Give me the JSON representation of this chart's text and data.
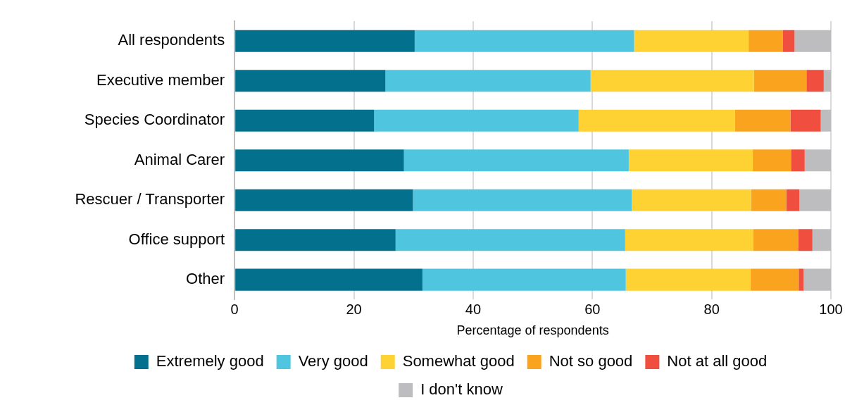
{
  "chart_data": {
    "type": "bar",
    "orientation": "horizontal",
    "stacked": true,
    "xlabel": "Percentage of respondents",
    "categories": [
      "All respondents",
      "Executive member",
      "Species Coordinator",
      "Animal Carer",
      "Rescuer / Transporter",
      "Office support",
      "Other"
    ],
    "series": [
      {
        "name": "Extremely good",
        "color": "#03718e",
        "values": [
          30.2,
          25.3,
          23.4,
          28.4,
          29.9,
          27.0,
          31.5
        ]
      },
      {
        "name": "Very good",
        "color": "#4fc5df",
        "values": [
          36.8,
          34.4,
          34.3,
          37.7,
          36.7,
          38.5,
          34.1
        ]
      },
      {
        "name": "Somewhat good",
        "color": "#fdd232",
        "values": [
          19.2,
          27.4,
          26.2,
          20.8,
          20.0,
          21.5,
          20.9
        ]
      },
      {
        "name": "Not so good",
        "color": "#f9a31e",
        "values": [
          5.7,
          8.8,
          9.3,
          6.4,
          5.9,
          7.5,
          8.1
        ]
      },
      {
        "name": "Not at all good",
        "color": "#f04e3e",
        "values": [
          2.0,
          2.9,
          5.1,
          2.3,
          2.2,
          2.4,
          0.8
        ]
      },
      {
        "name": "I don't know",
        "color": "#bdbdbf",
        "values": [
          6.1,
          1.2,
          1.7,
          4.4,
          5.3,
          3.1,
          4.6
        ]
      }
    ],
    "xlim": [
      0,
      100
    ],
    "xticks": [
      0,
      20,
      40,
      60,
      80,
      100
    ],
    "grid": "x",
    "legend": "bottom"
  }
}
